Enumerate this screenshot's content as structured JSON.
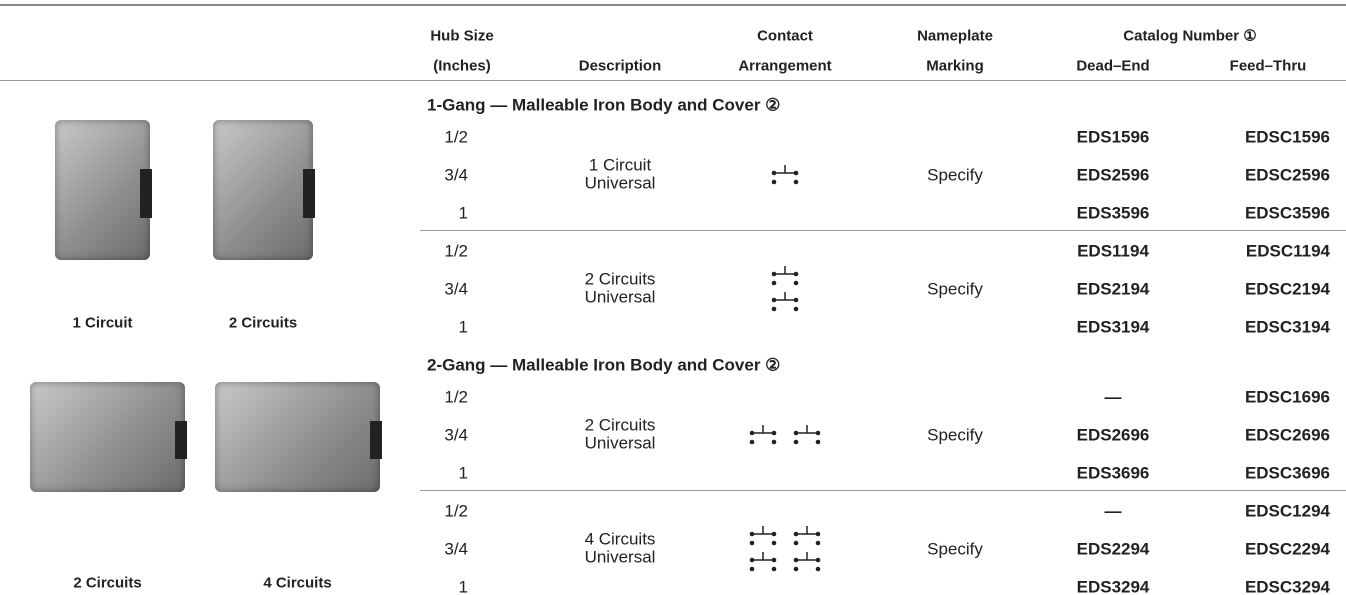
{
  "header": {
    "hub_size": [
      "Hub Size",
      "(Inches)"
    ],
    "description": "Description",
    "contact": [
      "Contact",
      "Arrangement"
    ],
    "nameplate": [
      "Nameplate",
      "Marking"
    ],
    "catalog_number": "Catalog Number ①",
    "dead_end": "Dead–End",
    "feed_thru": "Feed–Thru"
  },
  "sections": [
    {
      "title": "1-Gang — Malleable Iron Body and Cover ②",
      "images": [
        "1 Circuit",
        "2 Circuits"
      ],
      "groups": [
        {
          "description": [
            "1 Circuit",
            "Universal"
          ],
          "marking": "Specify",
          "rows": [
            [
              "1/2",
              "EDS1596",
              "EDSC1596"
            ],
            [
              "3/4",
              "EDS2596",
              "EDSC2596"
            ],
            [
              "1",
              "EDS3596",
              "EDSC3596"
            ]
          ]
        },
        {
          "description": [
            "2 Circuits",
            "Universal"
          ],
          "marking": "Specify",
          "rows": [
            [
              "1/2",
              "EDS1194",
              "EDSC1194"
            ],
            [
              "3/4",
              "EDS2194",
              "EDSC2194"
            ],
            [
              "1",
              "EDS3194",
              "EDSC3194"
            ]
          ]
        }
      ]
    },
    {
      "title": "2-Gang — Malleable Iron Body and Cover ②",
      "images": [
        "2 Circuits",
        "4 Circuits"
      ],
      "groups": [
        {
          "description": [
            "2 Circuits",
            "Universal"
          ],
          "marking": "Specify",
          "rows": [
            [
              "1/2",
              "—",
              "EDSC1696"
            ],
            [
              "3/4",
              "EDS2696",
              "EDSC2696"
            ],
            [
              "1",
              "EDS3696",
              "EDSC3696"
            ]
          ]
        },
        {
          "description": [
            "4 Circuits",
            "Universal"
          ],
          "marking": "Specify",
          "rows": [
            [
              "1/2",
              "—",
              "EDSC1294"
            ],
            [
              "3/4",
              "EDS2294",
              "EDSC2294"
            ],
            [
              "1",
              "EDS3294",
              "EDSC3294"
            ]
          ]
        }
      ]
    }
  ]
}
